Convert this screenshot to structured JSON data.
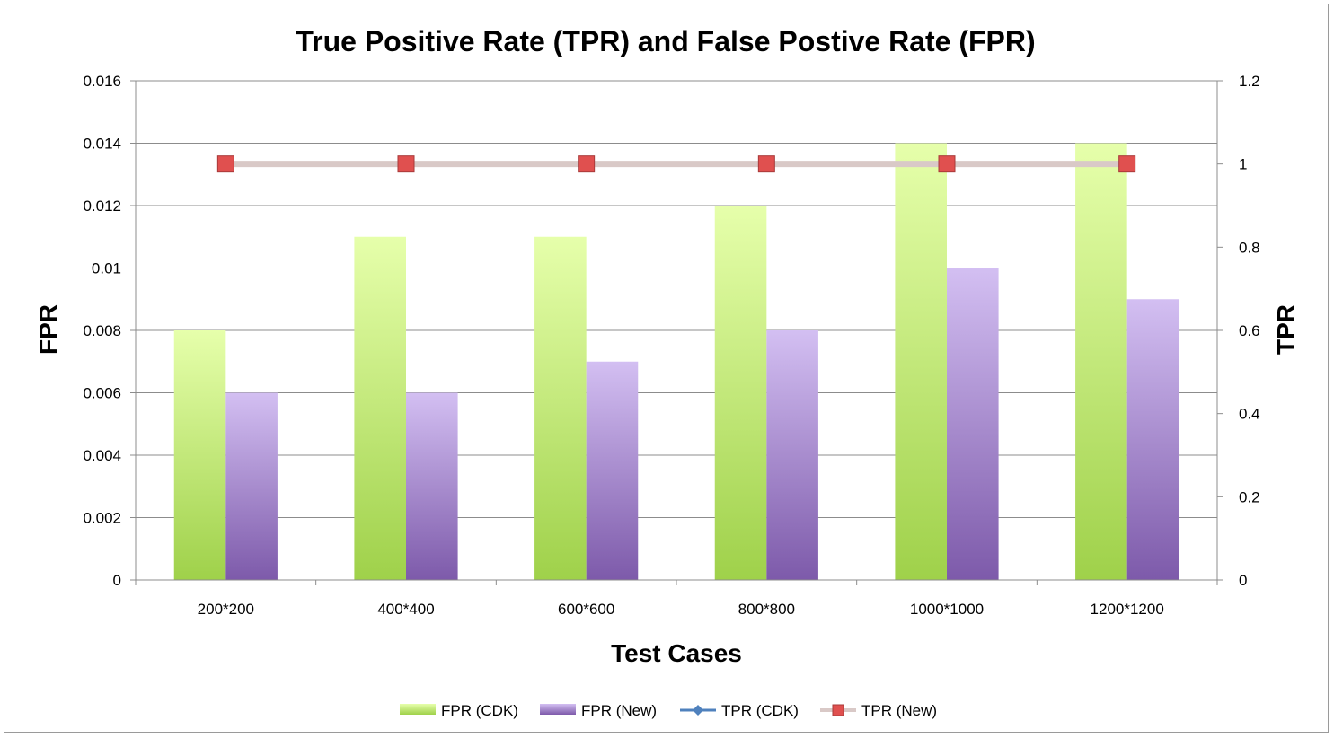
{
  "chart_data": {
    "type": "bar",
    "title": "True Positive Rate (TPR) and False Postive Rate (FPR)",
    "xlabel": "Test Cases",
    "ylabel": "FPR",
    "y2label": "TPR",
    "categories": [
      "200*200",
      "400*400",
      "600*600",
      "800*800",
      "1000*1000",
      "1200*1200"
    ],
    "ylim": [
      0,
      0.016
    ],
    "y2lim": [
      0,
      1.2
    ],
    "yticks": [
      "0",
      "0.002",
      "0.004",
      "0.006",
      "0.008",
      "0.01",
      "0.012",
      "0.014",
      "0.016"
    ],
    "y2ticks": [
      "0",
      "0.2",
      "0.4",
      "0.6",
      "0.8",
      "1",
      "1.2"
    ],
    "grid": true,
    "legend_position": "bottom",
    "series": [
      {
        "name": "FPR (CDK)",
        "kind": "bar",
        "axis": "left",
        "color": "#9fd14a",
        "color_light": "#e6ffab",
        "values": [
          0.008,
          0.011,
          0.011,
          0.012,
          0.014,
          0.014
        ]
      },
      {
        "name": "FPR (New)",
        "kind": "bar",
        "axis": "left",
        "color": "#7d5aaa",
        "color_light": "#d3bff2",
        "values": [
          0.006,
          0.006,
          0.007,
          0.008,
          0.01,
          0.009
        ]
      },
      {
        "name": "TPR (CDK)",
        "kind": "line",
        "axis": "right",
        "color": "#4f81bd",
        "marker": "diamond",
        "values": [
          1,
          1,
          1,
          1,
          1,
          1
        ]
      },
      {
        "name": "TPR (New)",
        "kind": "line",
        "axis": "right",
        "color": "#d9c9c7",
        "marker": "square",
        "marker_color": "#e0504f",
        "values": [
          1,
          1,
          1,
          1,
          1,
          1
        ]
      }
    ]
  }
}
